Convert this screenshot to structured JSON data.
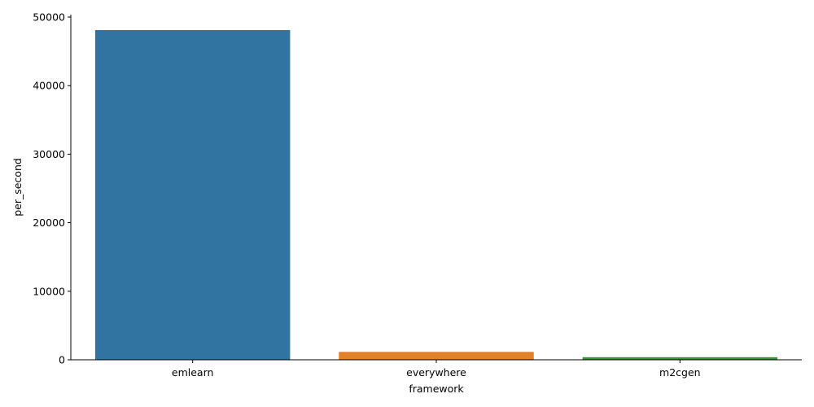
{
  "chart_data": {
    "type": "bar",
    "xlabel": "framework",
    "ylabel": "per_second",
    "categories": [
      "emlearn",
      "everywhere",
      "m2cgen"
    ],
    "values": [
      48100,
      1150,
      380
    ],
    "colors": [
      "#3274a1",
      "#e1812c",
      "#3a923a"
    ],
    "ylim": [
      0,
      50000
    ],
    "yticks": [
      0,
      10000,
      20000,
      30000,
      40000,
      50000
    ],
    "ytick_labels": [
      "0",
      "10000",
      "20000",
      "30000",
      "40000",
      "50000"
    ],
    "grid": false,
    "legend": "none",
    "spines": "left-bottom"
  }
}
